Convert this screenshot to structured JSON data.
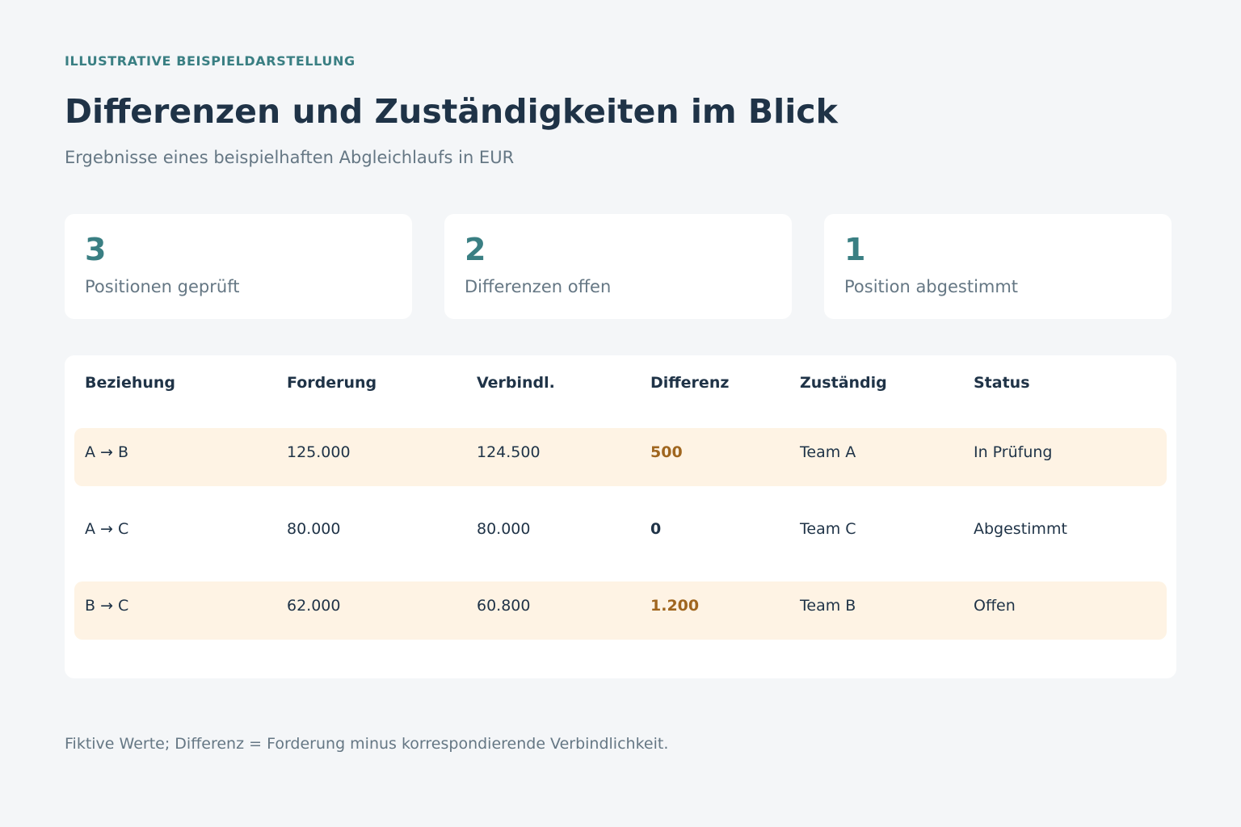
{
  "header": {
    "eyebrow": "ILLUSTRATIVE BEISPIELDARSTELLUNG",
    "title": "Differenzen und Zuständigkeiten im Blick",
    "subtitle": "Ergebnisse eines beispielhaften Abgleichlaufs in EUR"
  },
  "cards": [
    {
      "value": "3",
      "label": "Positionen geprüft"
    },
    {
      "value": "2",
      "label": "Differenzen offen"
    },
    {
      "value": "1",
      "label": "Position abgestimmt"
    }
  ],
  "table": {
    "columns": [
      "Beziehung",
      "Forderung",
      "Verbindl.",
      "Differenz",
      "Zuständig",
      "Status"
    ],
    "rows": [
      {
        "beziehung": "A → B",
        "forderung": "125.000",
        "verbindlichkeit": "124.500",
        "differenz": "500",
        "zustaendig": "Team A",
        "status": "In Prüfung"
      },
      {
        "beziehung": "A → C",
        "forderung": "80.000",
        "verbindlichkeit": "80.000",
        "differenz": "0",
        "zustaendig": "Team C",
        "status": "Abgestimmt"
      },
      {
        "beziehung": "B → C",
        "forderung": "62.000",
        "verbindlichkeit": "60.800",
        "differenz": "1.200",
        "zustaendig": "Team B",
        "status": "Offen"
      }
    ]
  },
  "footnote": "Fiktive Werte; Differenz = Forderung minus korrespondierende Verbindlichkeit.",
  "colors": {
    "accent": "#3a7f83",
    "highlight_row": "#fef3e4",
    "difference_highlight": "#a0661f",
    "difference_zero": "#1f3347"
  }
}
